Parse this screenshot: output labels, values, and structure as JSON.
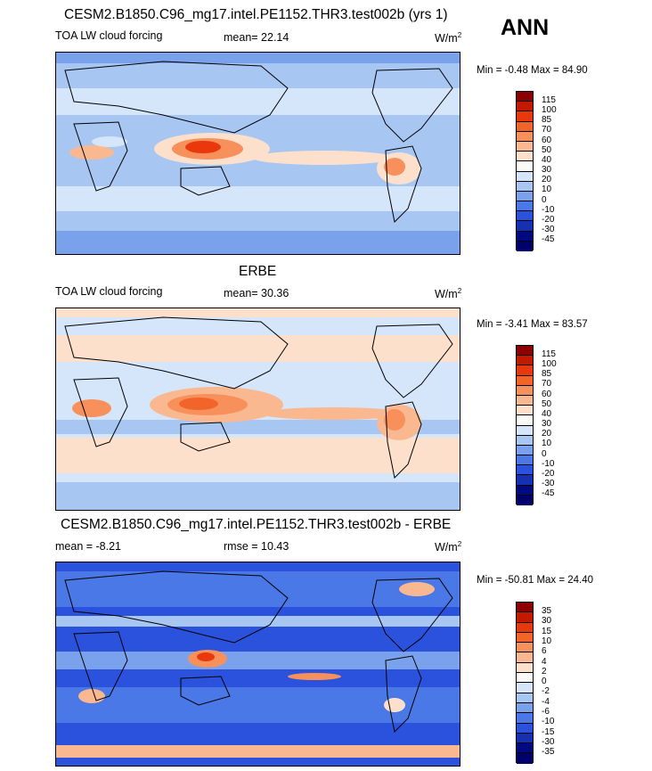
{
  "season": "ANN",
  "unit": "W/m",
  "unit_exp": "2",
  "panels": [
    {
      "title": "CESM2.B1850.C96_mg17.intel.PE1152.THR3.test002b (yrs 1)",
      "left_label": "TOA LW cloud forcing",
      "mid_label": "mean=  22.14",
      "minmax": "Min =  -0.48 Max =  84.90"
    },
    {
      "title": "ERBE",
      "left_label": "TOA LW cloud forcing",
      "mid_label": "mean=  30.36",
      "minmax": "Min =  -3.41 Max =  83.57"
    },
    {
      "title": "CESM2.B1850.C96_mg17.intel.PE1152.THR3.test002b - ERBE",
      "left_label": "mean =  -8.21",
      "mid_label": "rmse =  10.43",
      "minmax": "Min = -50.81 Max =  24.40"
    }
  ],
  "chart_data": [
    {
      "type": "heatmap",
      "title": "CESM2.B1850.C96_mg17.intel.PE1152.THR3.test002b (yrs 1)",
      "variable": "TOA LW cloud forcing",
      "mean": 22.14,
      "min": -0.48,
      "max": 84.9,
      "colorbar_levels": [
        "115",
        "100",
        "85",
        "70",
        "60",
        "50",
        "40",
        "30",
        "20",
        "10",
        "0",
        "-10",
        "-20",
        "-30",
        "-45"
      ],
      "colors": [
        "#8b0000",
        "#c21a00",
        "#e8380c",
        "#f2652a",
        "#f7905a",
        "#fab890",
        "#fde0cc",
        "#fafaf6",
        "#d6e6fa",
        "#a8c6f2",
        "#7aa2ec",
        "#4a78e6",
        "#2a52dc",
        "#1530b0",
        "#000a80",
        "#00006a"
      ]
    },
    {
      "type": "heatmap",
      "title": "ERBE",
      "variable": "TOA LW cloud forcing",
      "mean": 30.36,
      "min": -3.41,
      "max": 83.57,
      "colorbar_levels": [
        "115",
        "100",
        "85",
        "70",
        "60",
        "50",
        "40",
        "30",
        "20",
        "10",
        "0",
        "-10",
        "-20",
        "-30",
        "-45"
      ],
      "colors": [
        "#8b0000",
        "#c21a00",
        "#e8380c",
        "#f2652a",
        "#f7905a",
        "#fab890",
        "#fde0cc",
        "#fafaf6",
        "#d6e6fa",
        "#a8c6f2",
        "#7aa2ec",
        "#4a78e6",
        "#2a52dc",
        "#1530b0",
        "#000a80",
        "#00006a"
      ]
    },
    {
      "type": "heatmap",
      "title": "CESM2.B1850.C96_mg17.intel.PE1152.THR3.test002b - ERBE",
      "mean": -8.21,
      "rmse": 10.43,
      "min": -50.81,
      "max": 24.4,
      "colorbar_levels": [
        "35",
        "30",
        "15",
        "10",
        "6",
        "4",
        "2",
        "0",
        "-2",
        "-4",
        "-6",
        "-10",
        "-15",
        "-30",
        "-35"
      ],
      "colors": [
        "#8b0000",
        "#c21a00",
        "#e8380c",
        "#f2652a",
        "#f7905a",
        "#fab890",
        "#fde0cc",
        "#fafaf6",
        "#d6e6fa",
        "#a8c6f2",
        "#7aa2ec",
        "#4a78e6",
        "#2a52dc",
        "#1530b0",
        "#000a80",
        "#00006a"
      ]
    }
  ]
}
